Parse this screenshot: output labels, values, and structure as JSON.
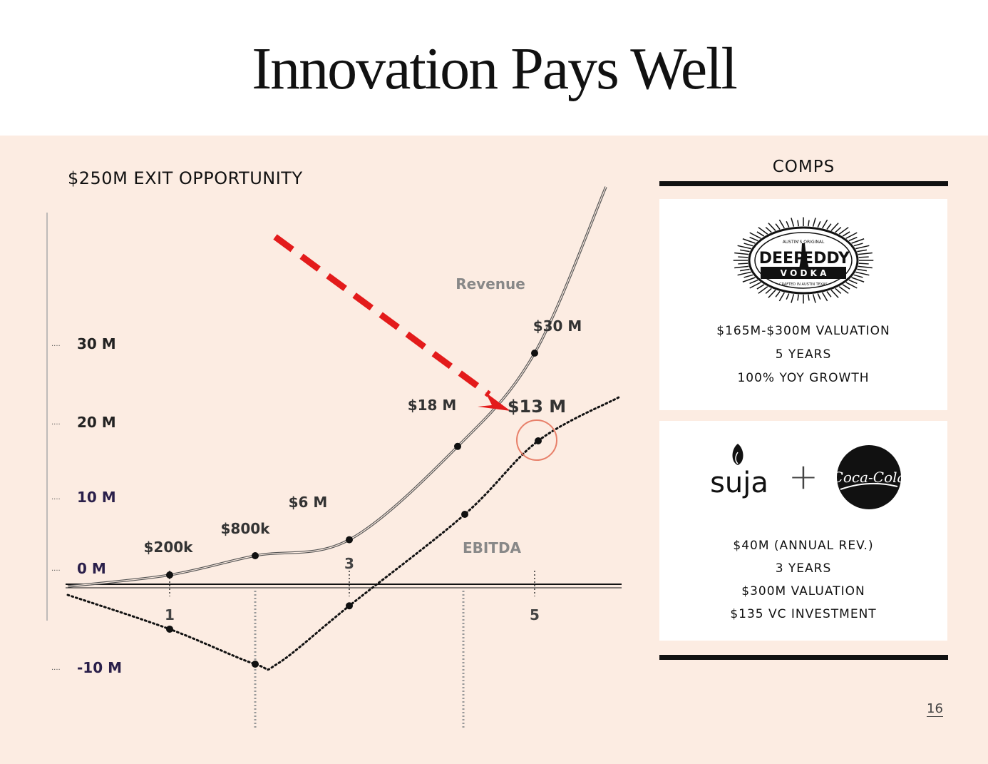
{
  "slide": {
    "title": "Innovation Pays Well",
    "page_number": "16"
  },
  "chart_data": {
    "type": "line",
    "title": "$250M EXIT OPPORTUNITY",
    "x": [
      0,
      1,
      2,
      3,
      4,
      5
    ],
    "x_tick_labels": [
      "1",
      "3",
      "5"
    ],
    "y_tick_labels": [
      "30 M",
      "20 M",
      "10 M",
      "0 M",
      "-10 M"
    ],
    "series": [
      {
        "name": "Revenue",
        "style": "solid",
        "values": [
          0,
          0.2,
          0.8,
          6,
          18,
          30
        ],
        "point_labels": [
          "",
          "$200k",
          "$800k",
          "$6 M",
          "$18 M",
          "$30 M"
        ]
      },
      {
        "name": "EBITDA",
        "style": "dotted",
        "values": [
          0,
          -5.5,
          -10,
          -2.5,
          8,
          13
        ],
        "point_labels": [
          "",
          "",
          "",
          "",
          "",
          "$13 M"
        ]
      }
    ],
    "highlight_label": "$13 M",
    "highlight_color": "#e8806a",
    "arrow_color": "#e31b1b"
  },
  "comps": {
    "title": "COMPS",
    "card1": {
      "logo": {
        "top_text": "AUSTIN'S ORIGINAL",
        "brand_left": "DEEP",
        "brand_right": "EDDY",
        "sub": "V O D K A",
        "tag": "CRAFTED IN AUSTIN TEXAS",
        "icon": "sunburst-badge-icon"
      },
      "lines": [
        "$165M-$300M VALUATION",
        "5 YEARS",
        "100% YOY GROWTH"
      ]
    },
    "card2": {
      "logo_left": "suja",
      "plus": "+",
      "logo_right": "Coca-Cola",
      "lines": [
        "$40M (ANNUAL REV.)",
        "3 YEARS",
        "$300M VALUATION",
        "$135 VC INVESTMENT"
      ]
    }
  }
}
